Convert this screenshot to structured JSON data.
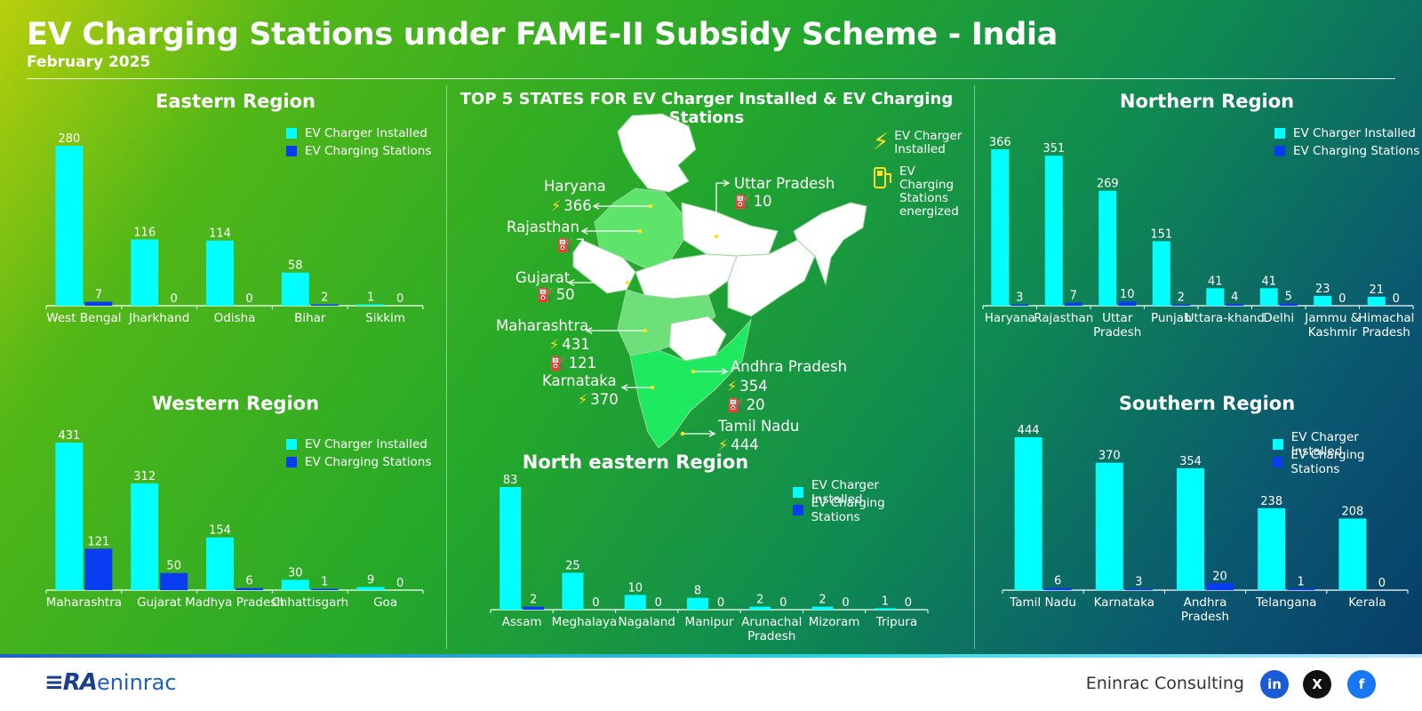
{
  "title": "EV Charging Stations under FAME-II Subsidy Scheme - India",
  "subtitle": "February 2025",
  "legend": {
    "installed": "EV Charger Installed",
    "stations": "EV Charging Stations"
  },
  "colors": {
    "installed": "#00ffff",
    "stations": "#0b3df0",
    "map_highlight": "#5ee46b",
    "icon": "#ffe21f"
  },
  "map": {
    "title": "TOP 5 STATES FOR EV Charger Installed & EV Charging Stations",
    "legend_installed": "EV Charger Installed",
    "legend_stations": "EV Charging Stations energized",
    "states": [
      {
        "name": "Haryana",
        "installed": "366"
      },
      {
        "name": "Rajasthan",
        "stations": "7"
      },
      {
        "name": "Gujarat",
        "stations": "50"
      },
      {
        "name": "Maharashtra",
        "installed": "431",
        "stations": "121"
      },
      {
        "name": "Karnataka",
        "installed": "370"
      },
      {
        "name": "Uttar Pradesh",
        "stations": "10"
      },
      {
        "name": "Andhra Pradesh",
        "installed": "354",
        "stations": "20"
      },
      {
        "name": "Tamil Nadu",
        "installed": "444"
      }
    ]
  },
  "footer": {
    "company": "Eninrac Consulting",
    "logo_text": "eninrac",
    "social": [
      "in",
      "X",
      "f"
    ]
  },
  "chart_data": [
    {
      "type": "bar",
      "title": "Eastern Region",
      "categories": [
        "West Bengal",
        "Jharkhand",
        "Odisha",
        "Bihar",
        "Sikkim"
      ],
      "series": [
        {
          "name": "EV Charger Installed",
          "values": [
            280,
            116,
            114,
            58,
            1
          ]
        },
        {
          "name": "EV Charging Stations",
          "values": [
            7,
            0,
            0,
            2,
            0
          ]
        }
      ]
    },
    {
      "type": "bar",
      "title": "Western Region",
      "categories": [
        "Maharashtra",
        "Gujarat",
        "Madhya Pradesh",
        "Chhattisgarh",
        "Goa"
      ],
      "series": [
        {
          "name": "EV Charger Installed",
          "values": [
            431,
            312,
            154,
            30,
            9
          ]
        },
        {
          "name": "EV Charging Stations",
          "values": [
            121,
            50,
            6,
            1,
            0
          ]
        }
      ]
    },
    {
      "type": "bar",
      "title": "North eastern Region",
      "categories": [
        "Assam",
        "Meghalaya",
        "Nagaland",
        "Manipur",
        "Arunachal Pradesh",
        "Mizoram",
        "Tripura"
      ],
      "series": [
        {
          "name": "EV Charger Installed",
          "values": [
            83,
            25,
            10,
            8,
            2,
            2,
            1
          ]
        },
        {
          "name": "EV Charging Stations",
          "values": [
            2,
            0,
            0,
            0,
            0,
            0,
            0
          ]
        }
      ]
    },
    {
      "type": "bar",
      "title": "Northern Region",
      "categories": [
        "Haryana",
        "Rajasthan",
        "Uttar Pradesh",
        "Punjab",
        "Uttara-khand",
        "Delhi",
        "Jammu & Kashmir",
        "Himachal Pradesh"
      ],
      "series": [
        {
          "name": "EV Charger Installed",
          "values": [
            366,
            351,
            269,
            151,
            41,
            41,
            23,
            21
          ]
        },
        {
          "name": "EV Charging Stations",
          "values": [
            3,
            7,
            10,
            2,
            4,
            5,
            0,
            0
          ]
        }
      ]
    },
    {
      "type": "bar",
      "title": "Southern Region",
      "categories": [
        "Tamil Nadu",
        "Karnataka",
        "Andhra Pradesh",
        "Telangana",
        "Kerala"
      ],
      "series": [
        {
          "name": "EV Charger Installed",
          "values": [
            444,
            370,
            354,
            238,
            208
          ]
        },
        {
          "name": "EV Charging Stations",
          "values": [
            6,
            3,
            20,
            1,
            0
          ]
        }
      ]
    }
  ]
}
